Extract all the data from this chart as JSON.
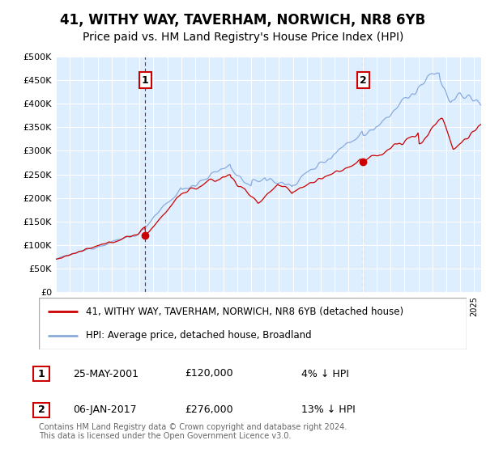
{
  "title": "41, WITHY WAY, TAVERHAM, NORWICH, NR8 6YB",
  "subtitle": "Price paid vs. HM Land Registry's House Price Index (HPI)",
  "ylim": [
    0,
    500000
  ],
  "yticks": [
    0,
    50000,
    100000,
    150000,
    200000,
    250000,
    300000,
    350000,
    400000,
    450000,
    500000
  ],
  "ytick_labels": [
    "£0",
    "£50K",
    "£100K",
    "£150K",
    "£200K",
    "£250K",
    "£300K",
    "£350K",
    "£400K",
    "£450K",
    "£500K"
  ],
  "xlim_start": 1995.0,
  "xlim_end": 2025.5,
  "plot_bg_color": "#ddeeff",
  "grid_color": "#ffffff",
  "purchase1_x": 2001.4,
  "purchase1_y": 120000,
  "purchase2_x": 2017.03,
  "purchase2_y": 276000,
  "legend_line1": "41, WITHY WAY, TAVERHAM, NORWICH, NR8 6YB (detached house)",
  "legend_line2": "HPI: Average price, detached house, Broadland",
  "annotation1_date": "25-MAY-2001",
  "annotation1_price": "£120,000",
  "annotation1_hpi": "4% ↓ HPI",
  "annotation2_date": "06-JAN-2017",
  "annotation2_price": "£276,000",
  "annotation2_hpi": "13% ↓ HPI",
  "footer": "Contains HM Land Registry data © Crown copyright and database right 2024.\nThis data is licensed under the Open Government Licence v3.0.",
  "red_color": "#cc0000",
  "blue_color": "#88aadd",
  "title_fontsize": 12,
  "subtitle_fontsize": 10
}
